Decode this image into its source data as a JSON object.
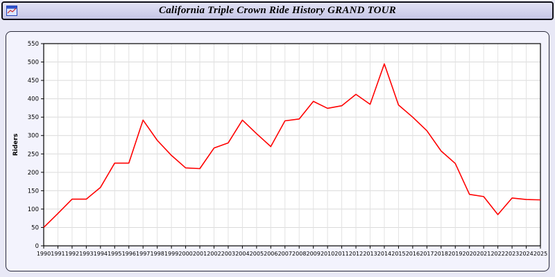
{
  "header": {
    "title": "California Triple Crown Ride History GRAND TOUR"
  },
  "chart_data": {
    "type": "line",
    "title": "California Triple Crown Ride History GRAND TOUR",
    "xlabel": "",
    "ylabel": "Riders",
    "ylim": [
      0,
      550
    ],
    "ytick_step": 50,
    "grid": true,
    "legend_position": "none",
    "line_color": "#ff0000",
    "plot_bg": "#ffffff",
    "x": [
      1990,
      1991,
      1992,
      1993,
      1994,
      1995,
      1996,
      1997,
      1998,
      1999,
      2000,
      2001,
      2002,
      2003,
      2004,
      2005,
      2006,
      2007,
      2008,
      2009,
      2010,
      2011,
      2012,
      2013,
      2014,
      2015,
      2016,
      2017,
      2018,
      2019,
      2020,
      2021,
      2022,
      2023,
      2024,
      2025
    ],
    "values": [
      50,
      88,
      127,
      127,
      159,
      225,
      225,
      342,
      287,
      246,
      212,
      210,
      266,
      280,
      342,
      305,
      270,
      340,
      345,
      393,
      374,
      381,
      412,
      385,
      495,
      383,
      350,
      313,
      258,
      224,
      140,
      134,
      85,
      130,
      126,
      125
    ]
  }
}
